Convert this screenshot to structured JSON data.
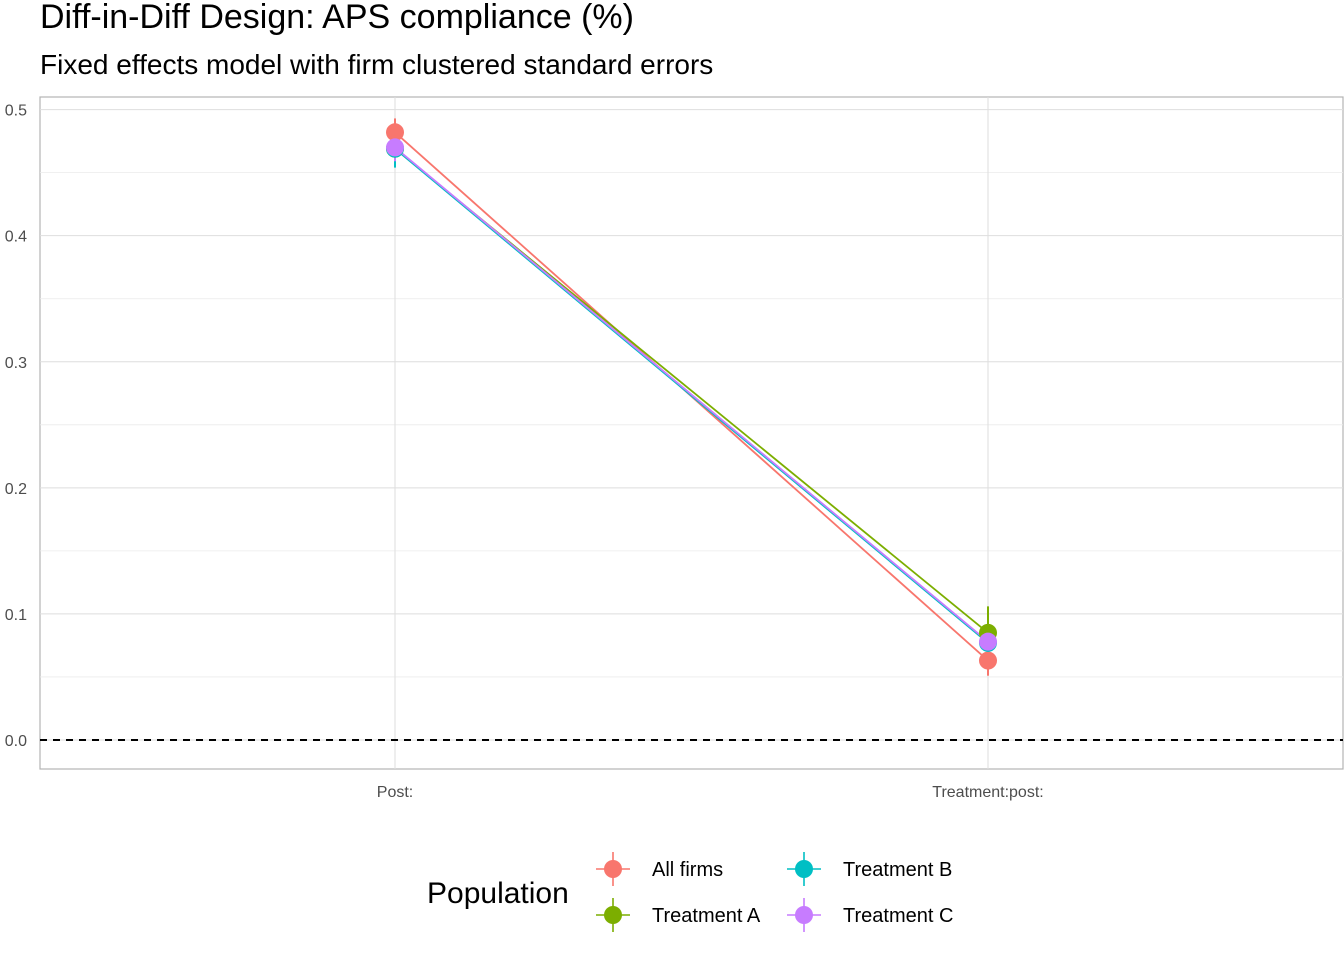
{
  "chart_data": {
    "type": "line",
    "title": "Diff-in-Diff Design: APS compliance (%)",
    "subtitle": "Fixed effects model with firm clustered standard errors",
    "xlabel": "",
    "ylabel": "",
    "categories": [
      "Post:",
      "Treatment:post:"
    ],
    "ylim": [
      -0.023,
      0.51
    ],
    "yticks": [
      0.0,
      0.1,
      0.2,
      0.3,
      0.4,
      0.5
    ],
    "ytick_labels": [
      "0.0",
      "0.1",
      "0.2",
      "0.3",
      "0.4",
      "0.5"
    ],
    "grid": true,
    "reference_line": {
      "y": 0,
      "style": "dashed",
      "color": "#000000"
    },
    "legend": {
      "title": "Population",
      "position": "bottom"
    },
    "series": [
      {
        "name": "All firms",
        "color": "#F8766D",
        "values": [
          0.482,
          0.063
        ],
        "lower": [
          0.471,
          0.051
        ],
        "upper": [
          0.493,
          0.075
        ]
      },
      {
        "name": "Treatment A",
        "color": "#7CAE00",
        "values": [
          0.469,
          0.085
        ],
        "lower": [
          0.456,
          0.064
        ],
        "upper": [
          0.483,
          0.106
        ]
      },
      {
        "name": "Treatment B",
        "color": "#00BFC4",
        "values": [
          0.469,
          0.077
        ],
        "lower": [
          0.454,
          0.066
        ],
        "upper": [
          0.484,
          0.089
        ]
      },
      {
        "name": "Treatment C",
        "color": "#C77CFF",
        "values": [
          0.47,
          0.078
        ],
        "lower": [
          0.459,
          0.067
        ],
        "upper": [
          0.481,
          0.089
        ]
      }
    ]
  }
}
